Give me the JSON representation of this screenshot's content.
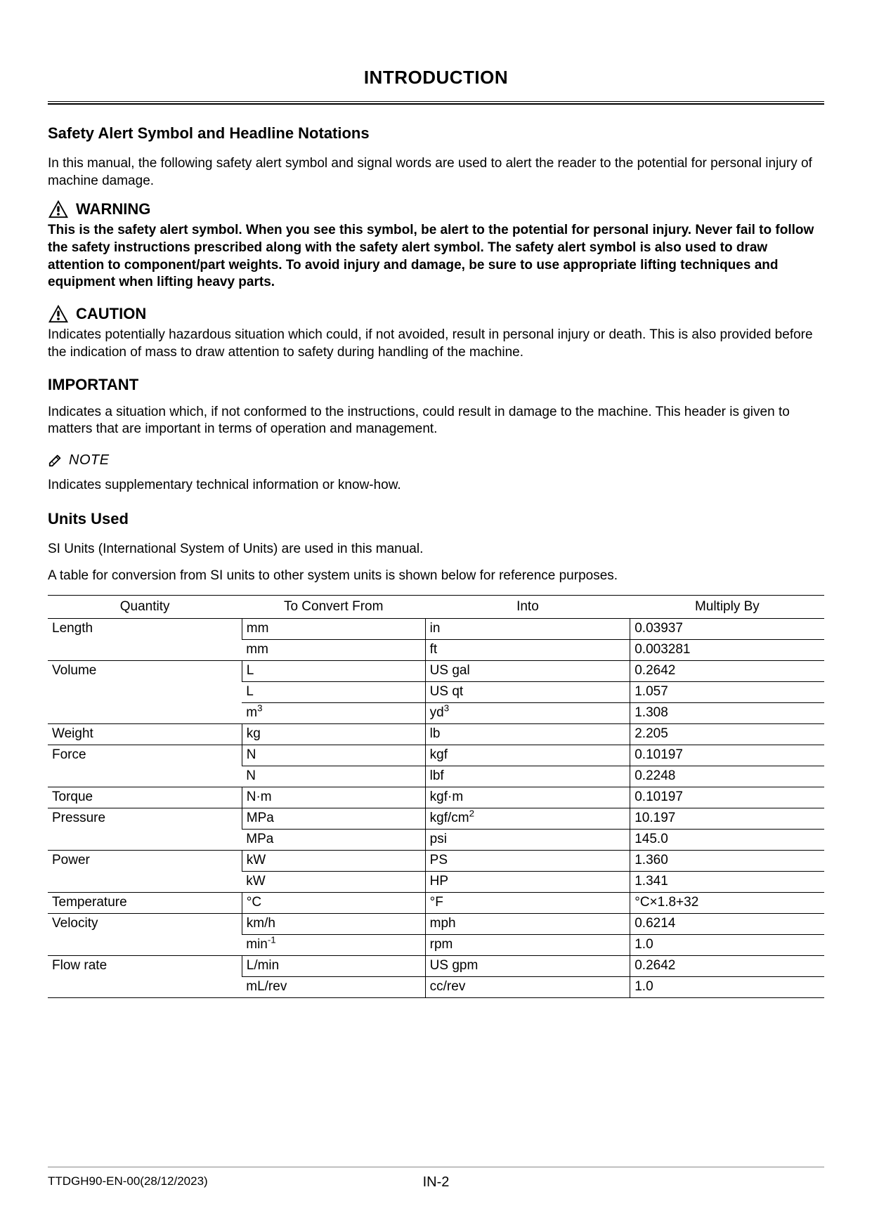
{
  "page_title": "INTRODUCTION",
  "section1": {
    "heading": "Safety Alert Symbol and Headline Notations",
    "intro": "In this manual, the following safety alert symbol and signal words are used to alert the reader to the potential for personal injury of machine damage."
  },
  "warning": {
    "label": "WARNING",
    "body": "This is the safety alert symbol. When you see this symbol, be alert to the potential for personal injury. Never fail to follow the safety instructions prescribed along with the safety alert symbol. The safety alert symbol is also used to draw attention to component/part weights. To avoid injury and damage, be sure to use appropriate lifting techniques and equipment when lifting heavy parts."
  },
  "caution": {
    "label": "CAUTION",
    "body": "Indicates potentially hazardous situation which could, if not avoided, result in personal injury or death. This is also provided before the indication of mass to draw attention to safety during handling of the machine."
  },
  "important": {
    "label": "IMPORTANT",
    "body": "Indicates a situation which, if not conformed to the instructions, could result in damage to the machine. This header is given to matters that are important in terms of operation and management."
  },
  "note": {
    "label": "NOTE",
    "body": "Indicates supplementary technical information or know-how."
  },
  "units": {
    "heading": "Units Used",
    "p1": "SI Units (International System of Units) are used in this manual.",
    "p2": "A table for conversion from SI units to other system units is shown below for reference purposes.",
    "columns": [
      "Quantity",
      "To Convert From",
      "Into",
      "Multiply By"
    ],
    "rows": [
      {
        "quantity": "Length",
        "from": "mm",
        "into": "in",
        "mult": "0.03937"
      },
      {
        "quantity": "",
        "from": "mm",
        "into": "ft",
        "mult": "0.003281"
      },
      {
        "quantity": "Volume",
        "from": "L",
        "into": "US gal",
        "mult": "0.2642"
      },
      {
        "quantity": "",
        "from": "L",
        "into": "US qt",
        "mult": "1.057"
      },
      {
        "quantity": "",
        "from": "m³",
        "into": "yd³",
        "mult": "1.308"
      },
      {
        "quantity": "Weight",
        "from": "kg",
        "into": "lb",
        "mult": "2.205"
      },
      {
        "quantity": "Force",
        "from": "N",
        "into": "kgf",
        "mult": "0.10197"
      },
      {
        "quantity": "",
        "from": "N",
        "into": "lbf",
        "mult": "0.2248"
      },
      {
        "quantity": "Torque",
        "from": "N·m",
        "into": "kgf·m",
        "mult": "0.10197"
      },
      {
        "quantity": "Pressure",
        "from": "MPa",
        "into": "kgf/cm²",
        "mult": "10.197"
      },
      {
        "quantity": "",
        "from": "MPa",
        "into": "psi",
        "mult": "145.0"
      },
      {
        "quantity": "Power",
        "from": "kW",
        "into": "PS",
        "mult": "1.360"
      },
      {
        "quantity": "",
        "from": "kW",
        "into": "HP",
        "mult": "1.341"
      },
      {
        "quantity": "Temperature",
        "from": "°C",
        "into": "°F",
        "mult": "°C×1.8+32"
      },
      {
        "quantity": "Velocity",
        "from": "km/h",
        "into": "mph",
        "mult": "0.6214"
      },
      {
        "quantity": "",
        "from": "min⁻¹",
        "into": "rpm",
        "mult": "1.0"
      },
      {
        "quantity": "Flow rate",
        "from": "L/min",
        "into": "US gpm",
        "mult": "0.2642"
      },
      {
        "quantity": "",
        "from": "mL/rev",
        "into": "cc/rev",
        "mult": "1.0"
      }
    ]
  },
  "footer": {
    "doc_id": "TTDGH90-EN-00(28/12/2023)",
    "page_num": "IN-2"
  }
}
